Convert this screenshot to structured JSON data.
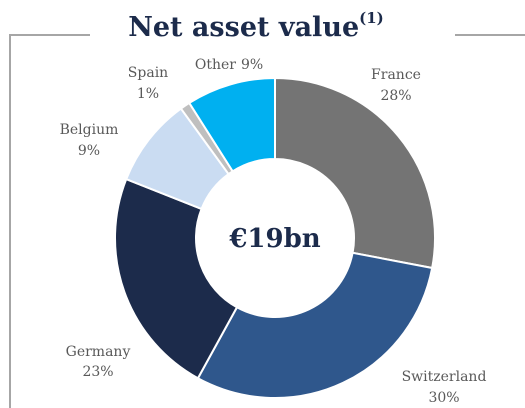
{
  "chart_data": {
    "type": "donut",
    "title": "Net asset value",
    "title_note": "(1)",
    "center_label": "€19bn",
    "categories": [
      "France",
      "Switzerland",
      "Germany",
      "Belgium",
      "Spain",
      "Other"
    ],
    "values": [
      28,
      30,
      23,
      9,
      1,
      9
    ],
    "value_labels": [
      "28%",
      "30%",
      "23%",
      "9%",
      "1%",
      "9%"
    ],
    "colors": [
      "#747474",
      "#2f578c",
      "#1c2b4b",
      "#cadcf2",
      "#bfbfbf",
      "#00b0f0"
    ]
  }
}
